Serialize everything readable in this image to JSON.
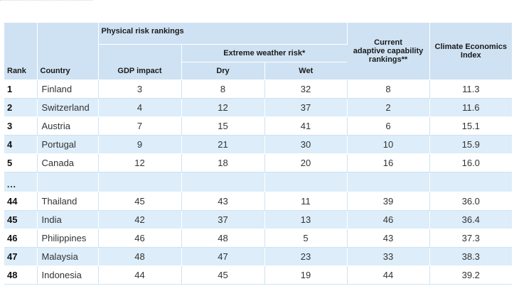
{
  "header": {
    "rank": "Rank",
    "country": "Country",
    "physical_risk": "Physical risk rankings",
    "extreme_weather": "Extreme weather risk*",
    "gdp_impact": "GDP impact",
    "dry": "Dry",
    "wet": "Wet",
    "adaptive_line1": "Current",
    "adaptive_line2": "adaptive capability",
    "adaptive_line3": "rankings**",
    "cei_line1": "Climate Economics",
    "cei_line2": "Index"
  },
  "rows": [
    {
      "rank": "1",
      "country": "Finland",
      "gdp": "3",
      "dry": "8",
      "wet": "32",
      "adapt": "8",
      "cei": "11.3"
    },
    {
      "rank": "2",
      "country": "Switzerland",
      "gdp": "4",
      "dry": "12",
      "wet": "37",
      "adapt": "2",
      "cei": "11.6"
    },
    {
      "rank": "3",
      "country": "Austria",
      "gdp": "7",
      "dry": "15",
      "wet": "41",
      "adapt": "6",
      "cei": "15.1"
    },
    {
      "rank": "4",
      "country": "Portugal",
      "gdp": "9",
      "dry": "21",
      "wet": "30",
      "adapt": "10",
      "cei": "15.9"
    },
    {
      "rank": "5",
      "country": "Canada",
      "gdp": "12",
      "dry": "18",
      "wet": "20",
      "adapt": "16",
      "cei": "16.0"
    },
    {
      "rank": "...",
      "country": "",
      "gdp": "",
      "dry": "",
      "wet": "",
      "adapt": "",
      "cei": ""
    },
    {
      "rank": "44",
      "country": "Thailand",
      "gdp": "45",
      "dry": "43",
      "wet": "11",
      "adapt": "39",
      "cei": "36.0"
    },
    {
      "rank": "45",
      "country": "India",
      "gdp": "42",
      "dry": "37",
      "wet": "13",
      "adapt": "46",
      "cei": "36.4"
    },
    {
      "rank": "46",
      "country": "Philippines",
      "gdp": "46",
      "dry": "48",
      "wet": "5",
      "adapt": "43",
      "cei": "37.3"
    },
    {
      "rank": "47",
      "country": "Malaysia",
      "gdp": "48",
      "dry": "47",
      "wet": "23",
      "adapt": "33",
      "cei": "38.3"
    },
    {
      "rank": "48",
      "country": "Indonesia",
      "gdp": "44",
      "dry": "45",
      "wet": "19",
      "adapt": "44",
      "cei": "39.2"
    }
  ]
}
